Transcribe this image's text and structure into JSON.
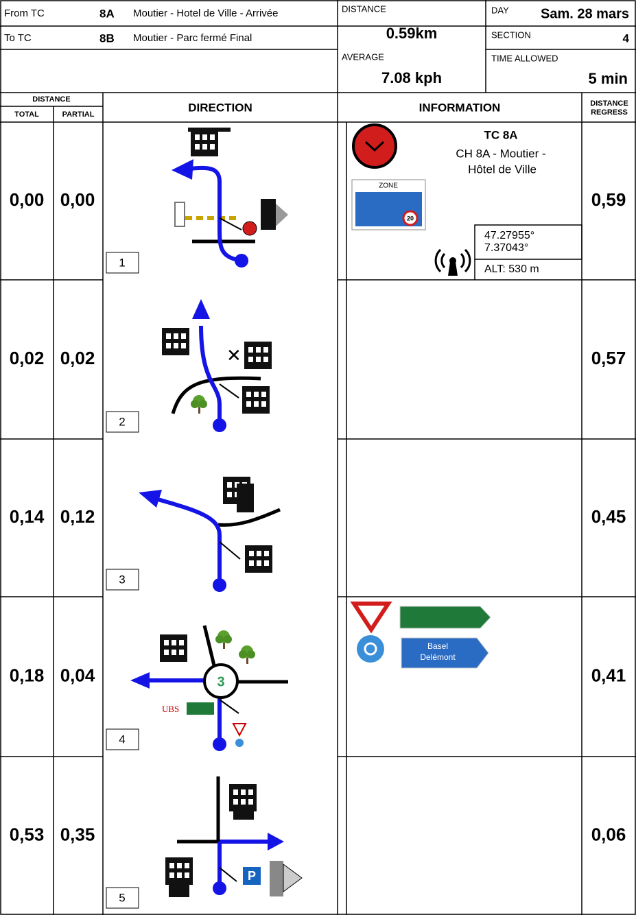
{
  "header": {
    "from_label": "From TC",
    "from_code": "8A",
    "from_name": "Moutier - Hotel de Ville - Arrivée",
    "to_label": "To TC",
    "to_code": "8B",
    "to_name": "Moutier - Parc fermé Final",
    "distance_label": "DISTANCE",
    "distance": "0.59km",
    "day_label": "DAY",
    "day": "Sam. 28 mars",
    "section_label": "SECTION",
    "section": "4",
    "average_label": "AVERAGE",
    "average": "7.08 kph",
    "time_label": "TIME ALLOWED",
    "time": "5 min"
  },
  "columns": {
    "distance": "DISTANCE",
    "total": "TOTAL",
    "partial": "PARTIAL",
    "direction": "DIRECTION",
    "information": "INFORMATION",
    "regress": [
      "DISTANCE",
      "REGRESS"
    ]
  },
  "rows": [
    {
      "total": "0,00",
      "partial": "0,00",
      "step": "1",
      "regress": "0,59",
      "info": {
        "title": "TC 8A",
        "lines": [
          "CH 8A - Moutier -",
          "Hôtel de Ville"
        ],
        "zone_sign": "ZONE",
        "speed": "20",
        "latitude": "47.27955°",
        "longitude": "7.37043°",
        "altitude": "ALT: 530 m"
      }
    },
    {
      "total": "0,02",
      "partial": "0,02",
      "step": "2",
      "regress": "0,57"
    },
    {
      "total": "0,14",
      "partial": "0,12",
      "step": "3",
      "regress": "0,45"
    },
    {
      "total": "0,18",
      "partial": "0,04",
      "step": "4",
      "regress": "0,41",
      "roundabout_exit": "3",
      "bank": "UBS",
      "info": {
        "sign_lines": [
          "Basel",
          "Delémont"
        ]
      }
    },
    {
      "total": "0,53",
      "partial": "0,35",
      "step": "5",
      "regress": "0,06",
      "parking": "P"
    }
  ]
}
